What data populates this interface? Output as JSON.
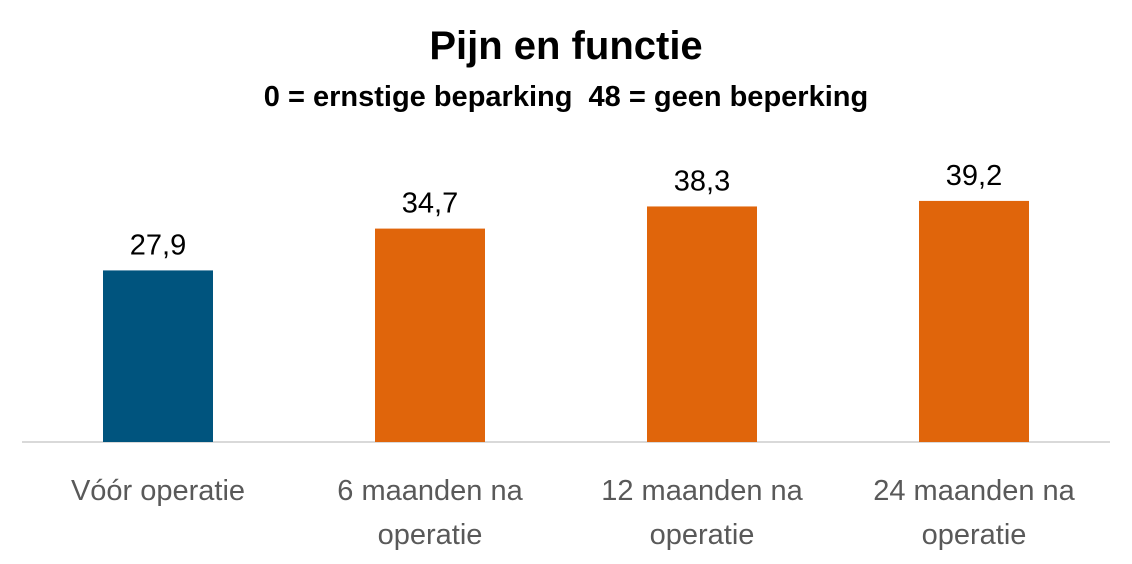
{
  "chart_data": {
    "type": "bar",
    "title": "Pijn en functie",
    "subtitle": "0 = ernstige beparking  48 = geen beperking",
    "categories": [
      [
        "Vóór operatie"
      ],
      [
        "6 maanden na",
        "operatie"
      ],
      [
        "12 maanden na",
        "operatie"
      ],
      [
        "24 maanden na",
        "operatie"
      ]
    ],
    "values": [
      27.9,
      34.7,
      38.3,
      39.2
    ],
    "value_labels": [
      "27,9",
      "34,7",
      "38,3",
      "39,2"
    ],
    "bar_colors": [
      "#00547e",
      "#e0650b",
      "#e0650b",
      "#e0650b"
    ],
    "axis_color": "#d9d9d9",
    "ylim": [
      0,
      48
    ],
    "grid": false,
    "legend": "none",
    "xlabel": "",
    "ylabel": ""
  }
}
